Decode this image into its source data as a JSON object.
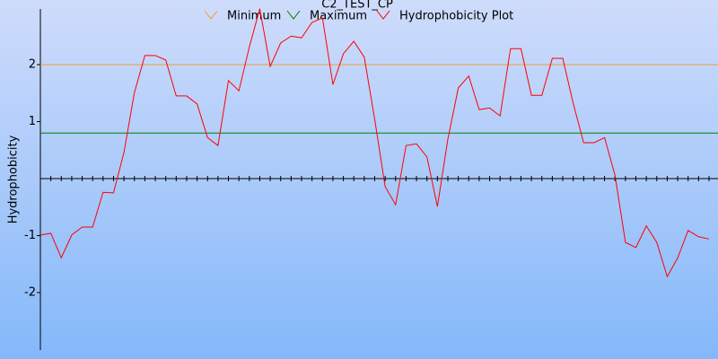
{
  "chart_data": {
    "type": "line",
    "title": "C2_TEST_CP",
    "y_label": "Hydrophobicity",
    "x": [
      1,
      2,
      3,
      4,
      5,
      6,
      7,
      8,
      9,
      10,
      11,
      12,
      13,
      14,
      15,
      16,
      17,
      18,
      19,
      20,
      21,
      22,
      23,
      24,
      25,
      26,
      27,
      28,
      29,
      30,
      31,
      32,
      33,
      34,
      35,
      36,
      37,
      38,
      39,
      40,
      41,
      42,
      43,
      44,
      45,
      46,
      47,
      48,
      49,
      50,
      51,
      52,
      53,
      54,
      55,
      56,
      57,
      58,
      59,
      60,
      61,
      62,
      63,
      64,
      65
    ],
    "xlim": [
      1,
      65
    ],
    "ylim": [
      -3,
      3
    ],
    "yticks": [
      -2,
      -1,
      1,
      2
    ],
    "series": [
      {
        "name": "Minimum",
        "color": "#f0a030",
        "value": 2
      },
      {
        "name": "Maximum",
        "color": "#008000",
        "value": 0.8
      },
      {
        "name": "Hydrophobicity Plot",
        "color": "#ff0000",
        "values": [
          -0.99,
          -0.96,
          -1.39,
          -0.99,
          -0.85,
          -0.85,
          -0.24,
          -0.25,
          0.46,
          1.51,
          2.16,
          2.16,
          2.08,
          1.45,
          1.45,
          1.31,
          0.72,
          0.58,
          1.72,
          1.54,
          2.31,
          2.98,
          1.97,
          2.38,
          2.5,
          2.47,
          2.74,
          2.82,
          1.65,
          2.19,
          2.41,
          2.13,
          1.04,
          -0.14,
          -0.46,
          0.58,
          0.61,
          0.38,
          -0.49,
          0.69,
          1.59,
          1.8,
          1.21,
          1.24,
          1.1,
          2.28,
          2.28,
          1.46,
          1.46,
          2.11,
          2.11,
          1.32,
          0.63,
          0.63,
          0.72,
          0.06,
          -1.12,
          -1.21,
          -0.83,
          -1.12,
          -1.72,
          -1.39,
          -0.91,
          -1.02,
          -1.06
        ]
      }
    ]
  }
}
